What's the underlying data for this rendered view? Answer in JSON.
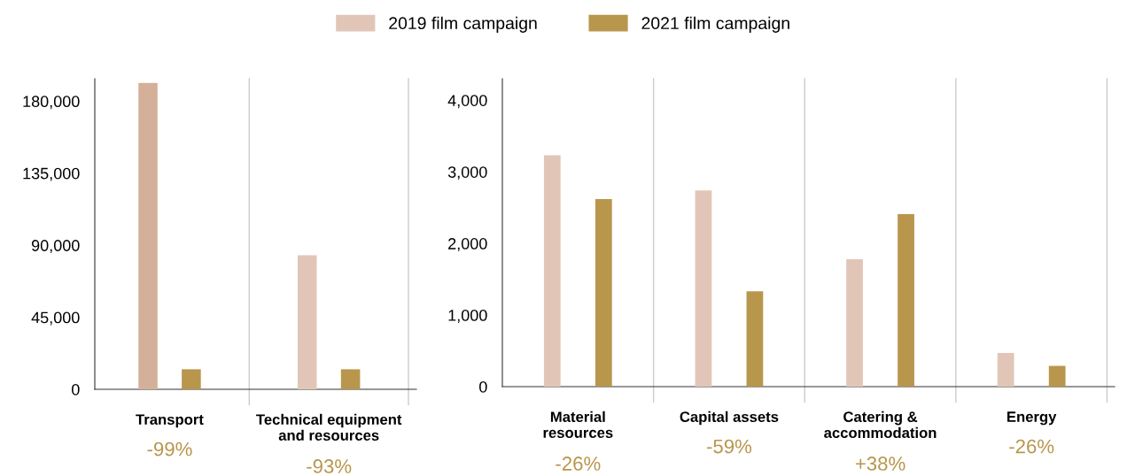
{
  "chart_data": [
    {
      "type": "bar",
      "categories": [
        "Transport",
        "Technical equipment\nand resources"
      ],
      "series": [
        {
          "name": "2019 film campaign",
          "color": "#e1c6b8",
          "colors": [
            "#d4b09a",
            "#e1c6b8"
          ],
          "values": [
            191400,
            83800
          ]
        },
        {
          "name": "2021 film campaign",
          "color": "#b8964c",
          "values": [
            12500,
            12500
          ]
        }
      ],
      "ylim": [
        0,
        194000
      ],
      "yticks": [
        {
          "value": 0,
          "label": "0"
        },
        {
          "value": 45000,
          "label": "45,000"
        },
        {
          "value": 90000,
          "label": "90,000"
        },
        {
          "value": 135000,
          "label": "135,000"
        },
        {
          "value": 180000,
          "label": "180,000"
        }
      ],
      "grid": "x",
      "legend": "top",
      "annotations": [
        "-99%",
        "-93%"
      ]
    },
    {
      "type": "bar",
      "categories": [
        "Material\nresources",
        "Capital assets",
        "Catering &\naccommodation",
        "Energy"
      ],
      "series": [
        {
          "color": "#e1c6b8",
          "values": [
            3230,
            2740,
            1780,
            470
          ]
        },
        {
          "color": "#b8964c",
          "values": [
            2620,
            1330,
            2410,
            290
          ]
        }
      ],
      "ylim": [
        0,
        4300
      ],
      "yticks": [
        {
          "value": 0,
          "label": "0"
        },
        {
          "value": 1000,
          "label": "1,000"
        },
        {
          "value": 2000,
          "label": "2,000"
        },
        {
          "value": 3000,
          "label": "3,000"
        },
        {
          "value": 4000,
          "label": "4,000"
        }
      ],
      "grid": "x",
      "annotations": [
        "-26%",
        "-59%",
        "+38%",
        "-26%"
      ]
    }
  ]
}
